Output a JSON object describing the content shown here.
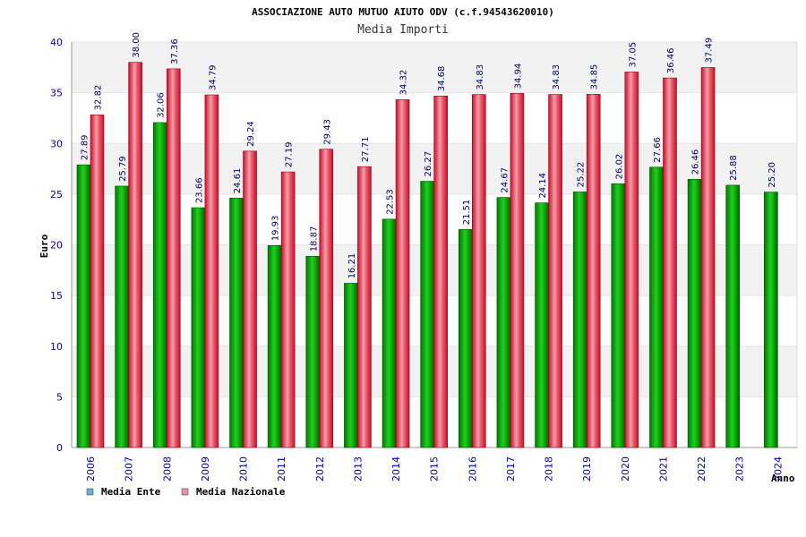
{
  "chart_data": {
    "type": "bar",
    "title": "ASSOCIAZIONE AUTO MUTUO AIUTO ODV (c.f.94543620010)",
    "subtitle": "Media Importi",
    "xlabel": "Anno",
    "ylabel": "Euro",
    "ylim": [
      0,
      40
    ],
    "yticks": [
      0,
      5,
      10,
      15,
      20,
      25,
      30,
      35,
      40
    ],
    "categories": [
      "2006",
      "2007",
      "2008",
      "2009",
      "2010",
      "2011",
      "2012",
      "2013",
      "2014",
      "2015",
      "2016",
      "2017",
      "2018",
      "2019",
      "2020",
      "2021",
      "2022",
      "2023",
      "2024"
    ],
    "series": [
      {
        "name": "Media Ente",
        "color": "#00aa00",
        "values": [
          27.89,
          25.79,
          32.06,
          23.66,
          24.61,
          19.93,
          18.87,
          16.21,
          22.53,
          26.27,
          21.51,
          24.67,
          24.14,
          25.22,
          26.02,
          27.66,
          26.46,
          25.88,
          25.2
        ],
        "labels": [
          "27.89",
          "25.79",
          "32.06",
          "23.66",
          "24.61",
          "19.93",
          "18.87",
          "16.21",
          "22.53",
          "26.27",
          "21.51",
          "24.67",
          "24.14",
          "25.22",
          "26.02",
          "27.66",
          "26.46",
          "25.88",
          "25.20"
        ]
      },
      {
        "name": "Media Nazionale",
        "color": "#e8283a",
        "values": [
          32.82,
          38.0,
          37.36,
          34.79,
          29.24,
          27.19,
          29.43,
          27.71,
          34.32,
          34.68,
          34.83,
          34.94,
          34.83,
          34.85,
          37.05,
          36.46,
          37.49,
          null,
          null
        ],
        "labels": [
          "32.82",
          "38.00",
          "37.36",
          "34.79",
          "29.24",
          "27.19",
          "29.43",
          "27.71",
          "34.32",
          "34.68",
          "34.83",
          "34.94",
          "34.83",
          "34.85",
          "37.05",
          "36.46",
          "37.49",
          null,
          null
        ]
      }
    ],
    "legend": [
      {
        "label": "Media Ente",
        "color": "#6fa8dc"
      },
      {
        "label": "Media Nazionale",
        "color": "#e891b0"
      }
    ],
    "grid": true,
    "legend_position": "bottom-left"
  }
}
